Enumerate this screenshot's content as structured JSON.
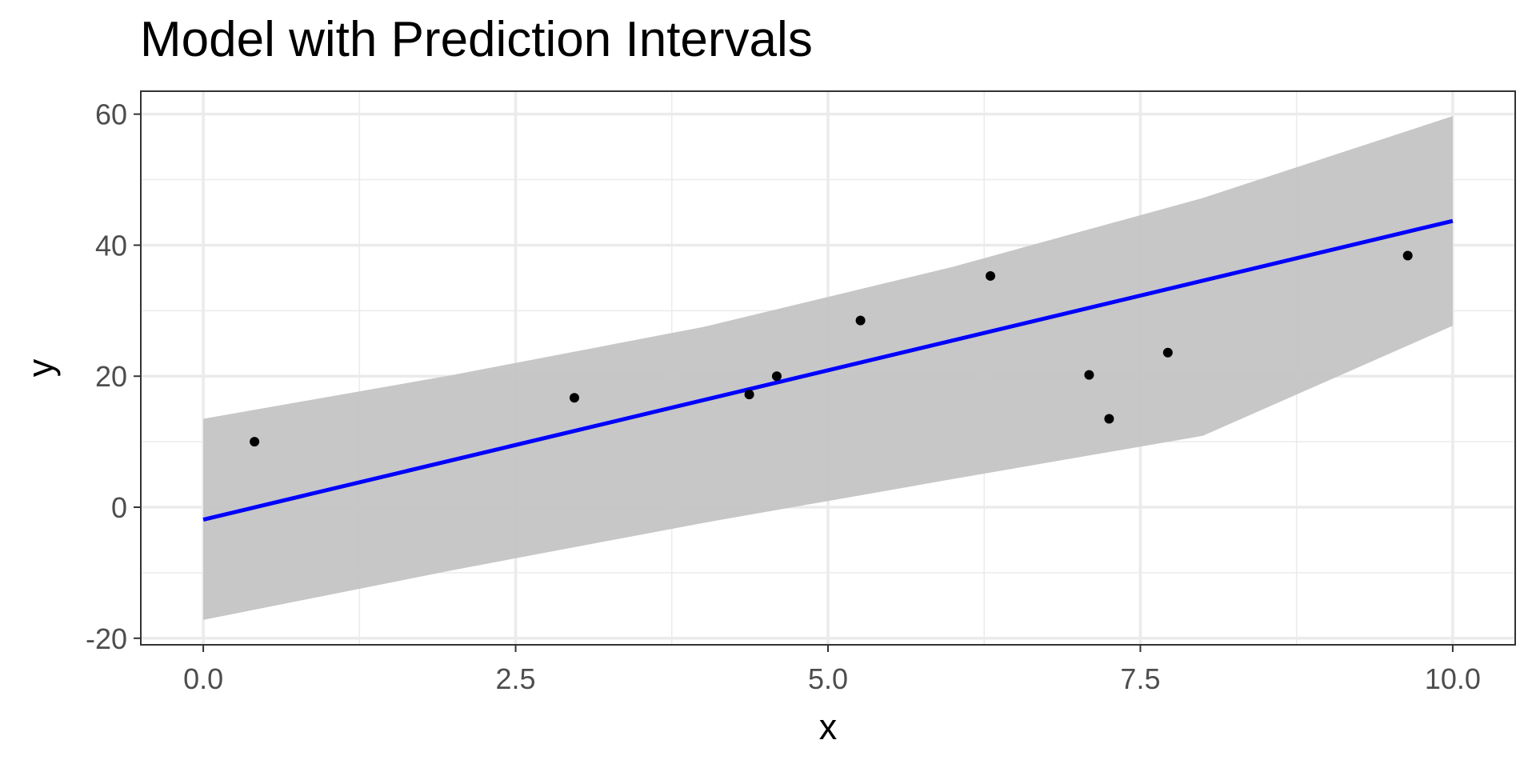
{
  "chart_data": {
    "type": "scatter",
    "title": "Model with Prediction Intervals",
    "xlabel": "x",
    "ylabel": "y",
    "xlim": [
      -0.5,
      10.5
    ],
    "ylim": [
      -21,
      63.5
    ],
    "x_ticks": [
      0.0,
      2.5,
      5.0,
      7.5,
      10.0
    ],
    "x_tick_labels": [
      "0.0",
      "2.5",
      "5.0",
      "7.5",
      "10.0"
    ],
    "y_ticks": [
      -20,
      0,
      20,
      40,
      60
    ],
    "y_tick_labels": [
      "-20",
      "0",
      "20",
      "40",
      "60"
    ],
    "grid": true,
    "legend": "none",
    "points": {
      "x": [
        0.41,
        2.97,
        4.37,
        4.59,
        5.26,
        6.3,
        7.09,
        7.25,
        7.72,
        9.64
      ],
      "y": [
        10.0,
        16.7,
        17.2,
        20.0,
        28.5,
        35.3,
        20.2,
        13.5,
        23.6,
        38.4
      ]
    },
    "fit_line": {
      "x": [
        0,
        10
      ],
      "y": [
        -1.9,
        43.7
      ]
    },
    "prediction_interval": {
      "x": [
        0,
        2,
        4,
        6,
        8,
        10
      ],
      "lower": [
        -17.2,
        -9.6,
        -2.4,
        4.3,
        10.9,
        27.7
      ],
      "upper": [
        13.5,
        20.2,
        27.5,
        36.7,
        47.2,
        59.7
      ]
    },
    "colors": {
      "points": "#000000",
      "fit_line": "#0000ff",
      "interval_fill": "#c4c4c4",
      "grid": "#ebebeb",
      "panel_border": "#333333"
    }
  }
}
